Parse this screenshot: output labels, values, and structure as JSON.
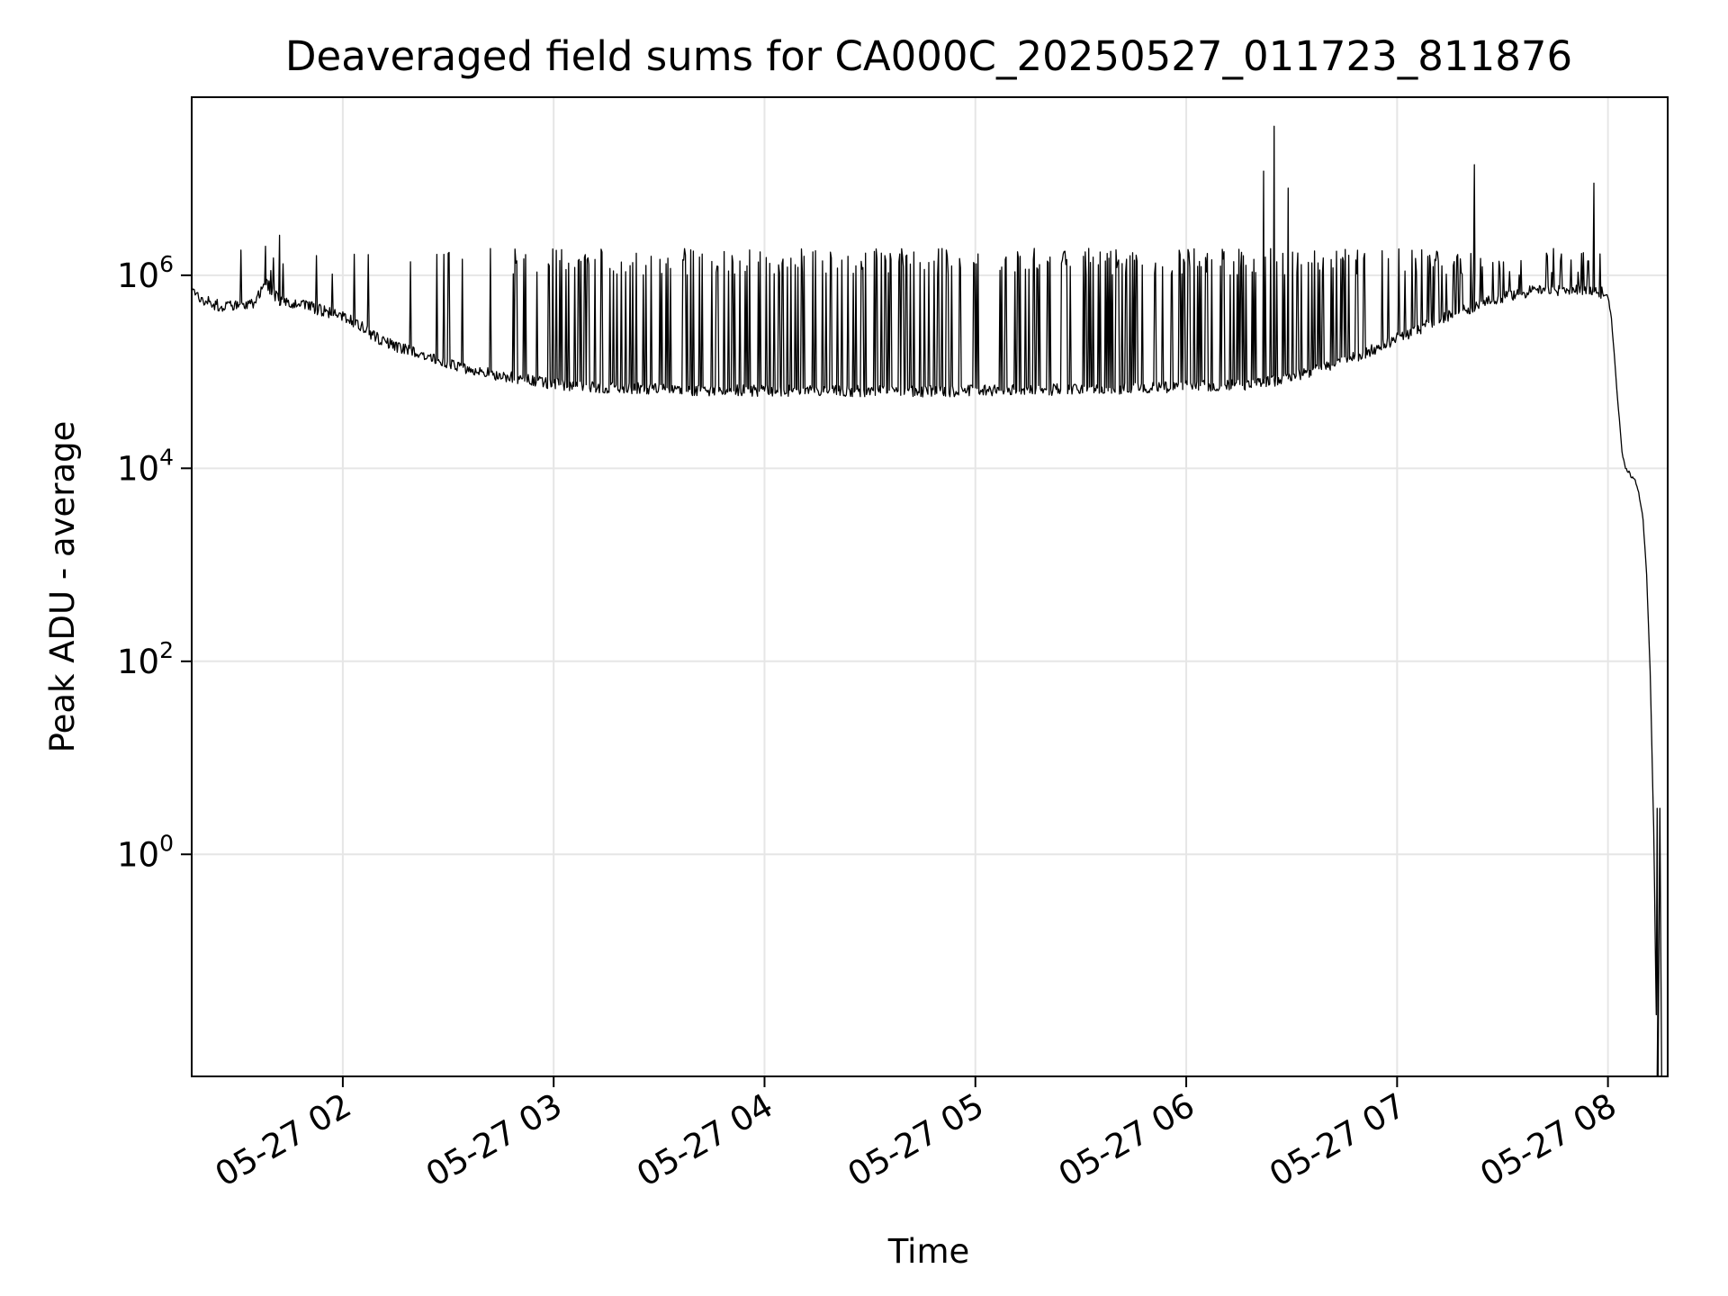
{
  "chart_data": {
    "type": "line",
    "title": "Deaveraged field sums for CA000C_20250527_011723_811876",
    "xlabel": "Time",
    "ylabel": "Peak ADU - average",
    "y_scale": "log",
    "grid": true,
    "legend": "none",
    "colors": {
      "line": "#000000",
      "grid": "#e6e6e6",
      "axes": "#000000"
    },
    "x_ticks": [
      "05-27 02",
      "05-27 03",
      "05-27 04",
      "05-27 05",
      "05-27 06",
      "05-27 07",
      "05-27 08"
    ],
    "y_ticks": [
      {
        "base": "10",
        "exp": "0",
        "value": 1
      },
      {
        "base": "10",
        "exp": "2",
        "value": 100
      },
      {
        "base": "10",
        "exp": "4",
        "value": 10000
      },
      {
        "base": "10",
        "exp": "6",
        "value": 1000000
      }
    ],
    "xlim": [
      "2025-05-27 01:17",
      "2025-05-27 08:17"
    ],
    "ylim": [
      0.005,
      70000000
    ],
    "series": [
      {
        "x": [
          "01:17",
          "01:20",
          "01:25",
          "01:30",
          "01:35",
          "01:38",
          "01:40",
          "01:42",
          "01:45",
          "01:50",
          "01:55",
          "02:00",
          "02:05",
          "02:10",
          "02:15",
          "02:20",
          "02:25",
          "02:30",
          "02:35",
          "02:40",
          "02:45",
          "02:50",
          "02:55",
          "03:00",
          "03:10",
          "03:20",
          "03:30",
          "03:40",
          "03:50",
          "04:00",
          "04:10",
          "04:20",
          "04:30",
          "04:40",
          "04:50",
          "05:00",
          "05:10",
          "05:20",
          "05:30",
          "05:40",
          "05:50",
          "06:00",
          "06:10",
          "06:20",
          "06:25",
          "06:30",
          "06:40",
          "06:50",
          "07:00",
          "07:10",
          "07:20",
          "07:30",
          "07:40",
          "07:50",
          "07:57",
          "08:00",
          "08:01",
          "08:02",
          "08:03",
          "08:04",
          "08:05",
          "08:06",
          "08:07",
          "08:08",
          "08:09",
          "08:10",
          "08:11",
          "08:12",
          "08:13",
          "08:14"
        ],
        "y": [
          800000,
          550000,
          480000,
          480000,
          500000,
          900000,
          650000,
          550000,
          500000,
          480000,
          420000,
          380000,
          300000,
          220000,
          180000,
          160000,
          140000,
          120000,
          110000,
          100000,
          90000,
          85000,
          80000,
          75000,
          70000,
          68000,
          66000,
          65000,
          64000,
          64000,
          63000,
          63000,
          63000,
          63000,
          63000,
          64000,
          64000,
          65000,
          66000,
          67000,
          68000,
          70000,
          72000,
          75000,
          80000,
          90000,
          110000,
          150000,
          220000,
          320000,
          450000,
          600000,
          700000,
          700000,
          700000,
          600000,
          350000,
          120000,
          40000,
          15000,
          10000,
          9000,
          8000,
          7000,
          5000,
          3000,
          800,
          80,
          2,
          0.005
        ]
      }
    ],
    "spikes": [
      {
        "x": "01:38",
        "y": 2000000
      },
      {
        "x": "01:42",
        "y": 2600000
      },
      {
        "x": "06:22",
        "y": 12000000
      },
      {
        "x": "06:25",
        "y": 35000000
      },
      {
        "x": "06:29",
        "y": 8000000
      },
      {
        "x": "07:22",
        "y": 14000000
      },
      {
        "x": "07:56",
        "y": 9000000
      },
      {
        "x": "08:14",
        "y": 3
      }
    ]
  }
}
